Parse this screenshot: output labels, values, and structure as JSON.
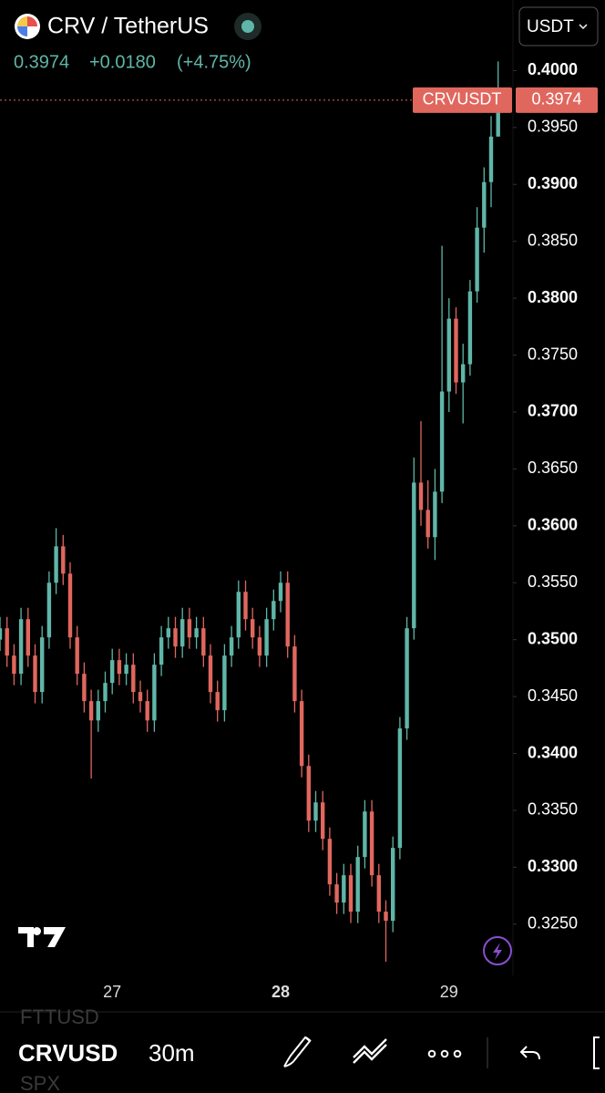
{
  "header": {
    "title": "CRV / TetherUS",
    "last": "0.3974",
    "change": "+0.0180",
    "change_pct": "(+4.75%)",
    "currency": "USDT"
  },
  "toolbar": {
    "symbol": "CRVUSD",
    "interval": "30m",
    "ghost_above": "FTTUSD",
    "ghost_below": "SPX"
  },
  "chart_data": {
    "type": "candlestick",
    "up_color": "#5fb6a8",
    "down_color": "#e0675e",
    "ylim": [
      0.3209,
      0.4062
    ],
    "yticks": [
      {
        "value": 0.325,
        "label": "0.3250"
      },
      {
        "value": 0.33,
        "label": "0.3300"
      },
      {
        "value": 0.335,
        "label": "0.3350"
      },
      {
        "value": 0.34,
        "label": "0.3400"
      },
      {
        "value": 0.345,
        "label": "0.3450"
      },
      {
        "value": 0.35,
        "label": "0.3500"
      },
      {
        "value": 0.355,
        "label": "0.3550"
      },
      {
        "value": 0.36,
        "label": "0.3600"
      },
      {
        "value": 0.365,
        "label": "0.3650"
      },
      {
        "value": 0.37,
        "label": "0.3700"
      },
      {
        "value": 0.375,
        "label": "0.3750"
      },
      {
        "value": 0.38,
        "label": "0.3800"
      },
      {
        "value": 0.385,
        "label": "0.3850"
      },
      {
        "value": 0.39,
        "label": "0.3900"
      },
      {
        "value": 0.395,
        "label": "0.3950"
      },
      {
        "value": 0.4,
        "label": "0.4000"
      }
    ],
    "price_line": {
      "name": "CRVUSDT",
      "value": 0.3974,
      "label": "0.3974"
    },
    "categories": [
      null,
      null,
      null,
      null,
      null,
      null,
      null,
      null,
      null,
      null,
      null,
      null,
      null,
      null,
      null,
      null,
      "27",
      null,
      null,
      null,
      null,
      null,
      null,
      null,
      null,
      null,
      null,
      null,
      null,
      null,
      null,
      null,
      null,
      null,
      null,
      null,
      null,
      null,
      null,
      null,
      "28",
      null,
      null,
      null,
      null,
      null,
      null,
      null,
      null,
      null,
      null,
      null,
      null,
      null,
      null,
      null,
      null,
      null,
      null,
      null,
      null,
      null,
      null,
      null,
      "29",
      null,
      null,
      null,
      null,
      null,
      null,
      null
    ],
    "open": [
      0.35,
      0.351,
      0.3486,
      0.347,
      0.3518,
      0.3486,
      0.3454,
      0.3502,
      0.355,
      0.3582,
      0.3558,
      0.3502,
      0.347,
      0.3446,
      0.3429,
      0.3446,
      0.3462,
      0.3482,
      0.347,
      0.3478,
      0.3454,
      0.3446,
      0.3429,
      0.3478,
      0.3502,
      0.351,
      0.3494,
      0.3518,
      0.3502,
      0.351,
      0.3486,
      0.3454,
      0.3438,
      0.3486,
      0.3502,
      0.3542,
      0.3518,
      0.3502,
      0.3486,
      0.3518,
      0.3534,
      0.355,
      0.3494,
      0.3446,
      0.3389,
      0.3341,
      0.3357,
      0.3325,
      0.3285,
      0.3269,
      0.3293,
      0.3261,
      0.3309,
      0.3349,
      0.3293,
      0.3261,
      0.3253,
      0.3317,
      0.3422,
      0.351,
      0.3638,
      0.3614,
      0.359,
      0.363,
      0.3718,
      0.3782,
      0.3726,
      0.3742,
      0.3806,
      0.3862,
      0.3902,
      0.3942
    ],
    "high": [
      0.352,
      0.352,
      0.3496,
      0.3528,
      0.3528,
      0.3496,
      0.3512,
      0.356,
      0.3598,
      0.3592,
      0.3568,
      0.3512,
      0.348,
      0.3456,
      0.3456,
      0.3472,
      0.3492,
      0.3492,
      0.3488,
      0.3488,
      0.3464,
      0.3456,
      0.3488,
      0.3512,
      0.352,
      0.352,
      0.3528,
      0.3528,
      0.352,
      0.352,
      0.3496,
      0.3464,
      0.3496,
      0.3512,
      0.3552,
      0.3552,
      0.3528,
      0.3512,
      0.3528,
      0.3544,
      0.356,
      0.356,
      0.3504,
      0.3456,
      0.3399,
      0.3367,
      0.3367,
      0.3335,
      0.3295,
      0.3303,
      0.3303,
      0.3319,
      0.3359,
      0.3359,
      0.3303,
      0.3271,
      0.3327,
      0.3432,
      0.352,
      0.366,
      0.3692,
      0.364,
      0.365,
      0.3846,
      0.38,
      0.3792,
      0.376,
      0.3816,
      0.388,
      0.3915,
      0.396,
      0.4008
    ],
    "low": [
      0.349,
      0.3476,
      0.346,
      0.346,
      0.3476,
      0.3444,
      0.3444,
      0.3492,
      0.354,
      0.3548,
      0.3492,
      0.346,
      0.3436,
      0.3378,
      0.3419,
      0.3436,
      0.3452,
      0.346,
      0.346,
      0.3444,
      0.3436,
      0.3419,
      0.3419,
      0.3468,
      0.3492,
      0.3484,
      0.3484,
      0.3492,
      0.3492,
      0.3476,
      0.3444,
      0.3428,
      0.3428,
      0.3476,
      0.3492,
      0.3508,
      0.3492,
      0.3476,
      0.3476,
      0.3508,
      0.3524,
      0.3484,
      0.3436,
      0.3379,
      0.3331,
      0.3331,
      0.3315,
      0.3275,
      0.3259,
      0.3259,
      0.3251,
      0.3251,
      0.3299,
      0.3283,
      0.3251,
      0.3217,
      0.3243,
      0.3307,
      0.3412,
      0.35,
      0.36,
      0.358,
      0.357,
      0.362,
      0.37,
      0.3716,
      0.369,
      0.3732,
      0.3796,
      0.384,
      0.388,
      0.395
    ],
    "close": [
      0.351,
      0.3486,
      0.347,
      0.3518,
      0.3486,
      0.3454,
      0.3502,
      0.355,
      0.3582,
      0.3558,
      0.3502,
      0.347,
      0.3446,
      0.3429,
      0.3446,
      0.3462,
      0.3482,
      0.347,
      0.3478,
      0.3454,
      0.3446,
      0.3429,
      0.3478,
      0.3502,
      0.351,
      0.3494,
      0.3518,
      0.3502,
      0.351,
      0.3486,
      0.3454,
      0.3438,
      0.3486,
      0.3502,
      0.3542,
      0.3518,
      0.3502,
      0.3486,
      0.3518,
      0.3534,
      0.355,
      0.3494,
      0.3446,
      0.3389,
      0.3341,
      0.3357,
      0.3325,
      0.3285,
      0.3269,
      0.3293,
      0.3261,
      0.3309,
      0.3349,
      0.3293,
      0.3261,
      0.3253,
      0.3317,
      0.3422,
      0.351,
      0.3638,
      0.3614,
      0.359,
      0.363,
      0.3718,
      0.3782,
      0.3726,
      0.3742,
      0.3806,
      0.3862,
      0.3902,
      0.3942,
      0.3974
    ]
  }
}
